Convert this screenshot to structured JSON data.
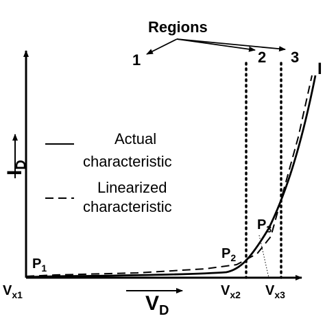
{
  "title": "Regions",
  "regions": [
    "1",
    "2",
    "3"
  ],
  "axis_labels": {
    "y_main": "I",
    "y_sub": "D",
    "x_main": "V",
    "x_sub": "D"
  },
  "legend": [
    {
      "style": "solid",
      "line1": "Actual",
      "line2": "characteristic"
    },
    {
      "style": "dashed",
      "line1": "Linearized",
      "line2": "characteristic"
    }
  ],
  "points": [
    {
      "main": "P",
      "sub": "1"
    },
    {
      "main": "P",
      "sub": "2"
    },
    {
      "main": "P",
      "sub": "3"
    }
  ],
  "x_ticks": [
    {
      "main": "V",
      "sub": "x1"
    },
    {
      "main": "V",
      "sub": "x2"
    },
    {
      "main": "V",
      "sub": "x3"
    }
  ],
  "curve_label": "I"
}
